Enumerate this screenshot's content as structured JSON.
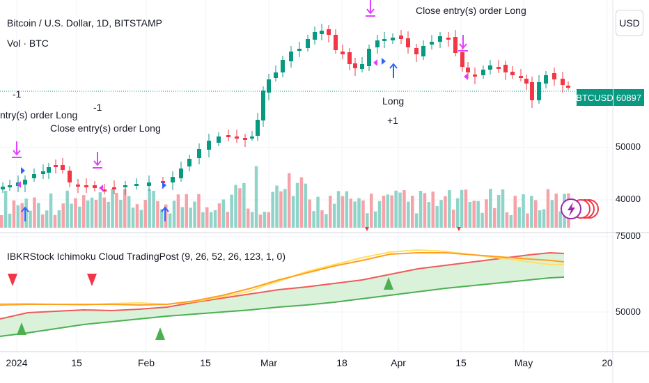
{
  "header": {
    "symbol_title": "Bitcoin / U.S. Dollar, 1D, BITSTAMP",
    "volume_legend": "Vol · BTC",
    "currency_button": "USD"
  },
  "price_tag": {
    "symbol": "BTCUSD",
    "value": "60897"
  },
  "price_axis": [
    "50000",
    "40000"
  ],
  "indicator": {
    "title": "IBKRStock Ichimoku Cloud TradingPost (9, 26, 52, 26, 123, 1, 0)",
    "axis": [
      "75000",
      "50000"
    ]
  },
  "time_axis": [
    "2024",
    "15",
    "Feb",
    "15",
    "Mar",
    "18",
    "Apr",
    "15",
    "May",
    "20"
  ],
  "signals": {
    "minus_one_left": "-1",
    "close_left": "ntry(s) order Long",
    "minus_one_mid": "-1",
    "close_mid": "Close entry(s) order Long",
    "close_right": "Close entry(s) order Long",
    "long": "Long",
    "plus_one": "+1"
  },
  "colors": {
    "up": "#089981",
    "down": "#f23645",
    "vol_up": "#8fd3c9",
    "vol_down": "#f5a3a8",
    "marker": "#e040fb",
    "entry_arrow": "#2962ff",
    "cloud_fill": "#d9f2d9",
    "line_red": "#f05a5a",
    "line_green": "#4caf50",
    "line_yellow": "#ffe066",
    "line_orange": "#ff9f1c"
  },
  "chart_data": {
    "type": "candlestick",
    "symbol": "BTCUSD",
    "timeframe": "1D",
    "x": [
      "2024-01-01",
      "2024-05-11"
    ],
    "last_price": 60897,
    "price_range": [
      35000,
      75000
    ],
    "indicator_range": [
      35000,
      78000
    ]
  }
}
